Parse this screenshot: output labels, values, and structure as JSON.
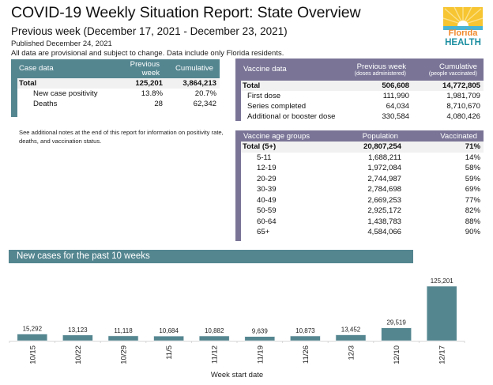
{
  "header": {
    "title": "COVID-19 Weekly Situation Report: State Overview",
    "subtitle": "Previous week (December 17, 2021 - December 23, 2021)",
    "published": "Published December 24, 2021",
    "disclaimer": "All data are provisional and subject to change. Data include only Florida residents."
  },
  "logo": {
    "line1": "Florida",
    "line2": "HEALTH",
    "colors": {
      "sun": "#f7c531",
      "orange": "#f0892b",
      "teal": "#1d8fa1",
      "sea": "#4ab5d4"
    }
  },
  "colors": {
    "case_accent": "#548690",
    "vaccine_accent": "#7a7597",
    "total_row_bg": "#f1f1f1",
    "bar": "#548690"
  },
  "case_table": {
    "headers": [
      "Case data",
      "Previous week",
      "Cumulative"
    ],
    "rows": [
      {
        "label": "Total",
        "previous_week": "125,201",
        "cumulative": "3,864,213",
        "total": true
      },
      {
        "label": "New case positivity",
        "previous_week": "13.8%",
        "cumulative": "20.7%"
      },
      {
        "label": "Deaths",
        "previous_week": "28",
        "cumulative": "62,342"
      }
    ]
  },
  "vaccine_table": {
    "headers": [
      "Vaccine data",
      "Previous week",
      "Cumulative"
    ],
    "subheaders": [
      "",
      "(doses administered)",
      "(people vaccinated)"
    ],
    "rows": [
      {
        "label": "Total",
        "previous_week": "506,608",
        "cumulative": "14,772,805",
        "total": true
      },
      {
        "label": "First dose",
        "previous_week": "111,990",
        "cumulative": "1,981,709"
      },
      {
        "label": "Series completed",
        "previous_week": "64,034",
        "cumulative": "8,710,670"
      },
      {
        "label": "Additional or booster dose",
        "previous_week": "330,584",
        "cumulative": "4,080,426"
      }
    ]
  },
  "notes": "See additional notes at the end of this report for information on positivity rate, deaths, and vaccination status.",
  "age_table": {
    "headers": [
      "Vaccine age groups",
      "Population",
      "Vaccinated"
    ],
    "rows": [
      {
        "label": "Total (5+)",
        "population": "20,807,254",
        "vaccinated": "71%",
        "total": true
      },
      {
        "label": "5-11",
        "population": "1,688,211",
        "vaccinated": "14%"
      },
      {
        "label": "12-19",
        "population": "1,972,084",
        "vaccinated": "58%"
      },
      {
        "label": "20-29",
        "population": "2,744,987",
        "vaccinated": "59%"
      },
      {
        "label": "30-39",
        "population": "2,784,698",
        "vaccinated": "69%"
      },
      {
        "label": "40-49",
        "population": "2,669,253",
        "vaccinated": "77%"
      },
      {
        "label": "50-59",
        "population": "2,925,172",
        "vaccinated": "82%"
      },
      {
        "label": "60-64",
        "population": "1,438,783",
        "vaccinated": "88%"
      },
      {
        "label": "65+",
        "population": "4,584,066",
        "vaccinated": "90%"
      }
    ]
  },
  "chart_section_title": "New cases for the past 10 weeks",
  "chart_data": {
    "type": "bar",
    "title": "New cases for the past 10 weeks",
    "xlabel": "Week start date",
    "ylabel": "",
    "categories": [
      "10/15",
      "10/22",
      "10/29",
      "11/5",
      "11/12",
      "11/19",
      "11/26",
      "12/3",
      "12/10",
      "12/17"
    ],
    "values": [
      15292,
      13123,
      11118,
      10684,
      10882,
      9639,
      10873,
      13452,
      29519,
      125201
    ],
    "data_labels": [
      "15,292",
      "13,123",
      "11,118",
      "10,684",
      "10,882",
      "9,639",
      "10,873",
      "13,452",
      "29,519",
      "125,201"
    ],
    "ylim": [
      0,
      125201
    ],
    "grid": false,
    "legend": "none"
  }
}
